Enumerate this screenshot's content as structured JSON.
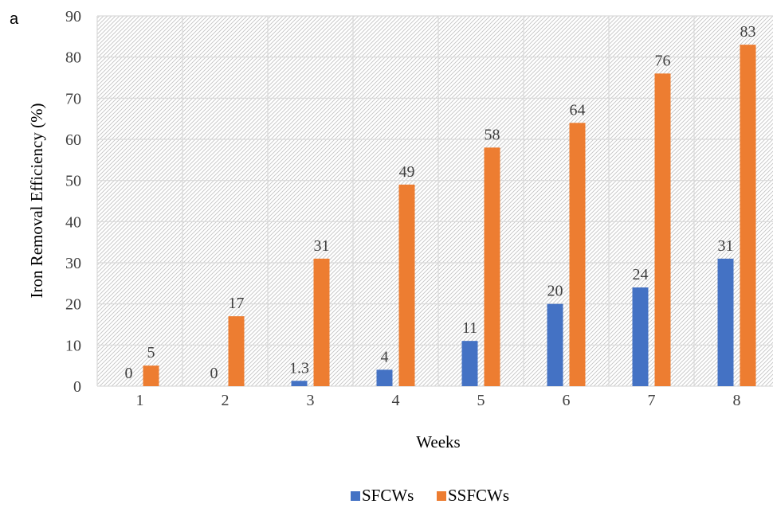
{
  "panel_label": "a",
  "chart_data": {
    "type": "bar",
    "categories": [
      "1",
      "2",
      "3",
      "4",
      "5",
      "6",
      "7",
      "8"
    ],
    "series": [
      {
        "name": "SFCWs",
        "values": [
          0,
          0,
          1.3,
          4,
          11,
          20,
          24,
          31
        ],
        "labels": [
          "0",
          "0",
          "1.3",
          "4",
          "11",
          "20",
          "24",
          "31"
        ],
        "color": "#4472C4"
      },
      {
        "name": "SSFCWs",
        "values": [
          5,
          17,
          31,
          49,
          58,
          64,
          76,
          83
        ],
        "labels": [
          "5",
          "17",
          "31",
          "49",
          "58",
          "64",
          "76",
          "83"
        ],
        "color": "#ED7D31"
      }
    ],
    "xlabel": "Weeks",
    "ylabel": "Iron Removal Efficiency (%)",
    "ylim": [
      0,
      90
    ],
    "yticks": [
      "0",
      "10",
      "20",
      "30",
      "40",
      "50",
      "60",
      "70",
      "80",
      "90"
    ],
    "grid": true,
    "legend": "bottom"
  }
}
